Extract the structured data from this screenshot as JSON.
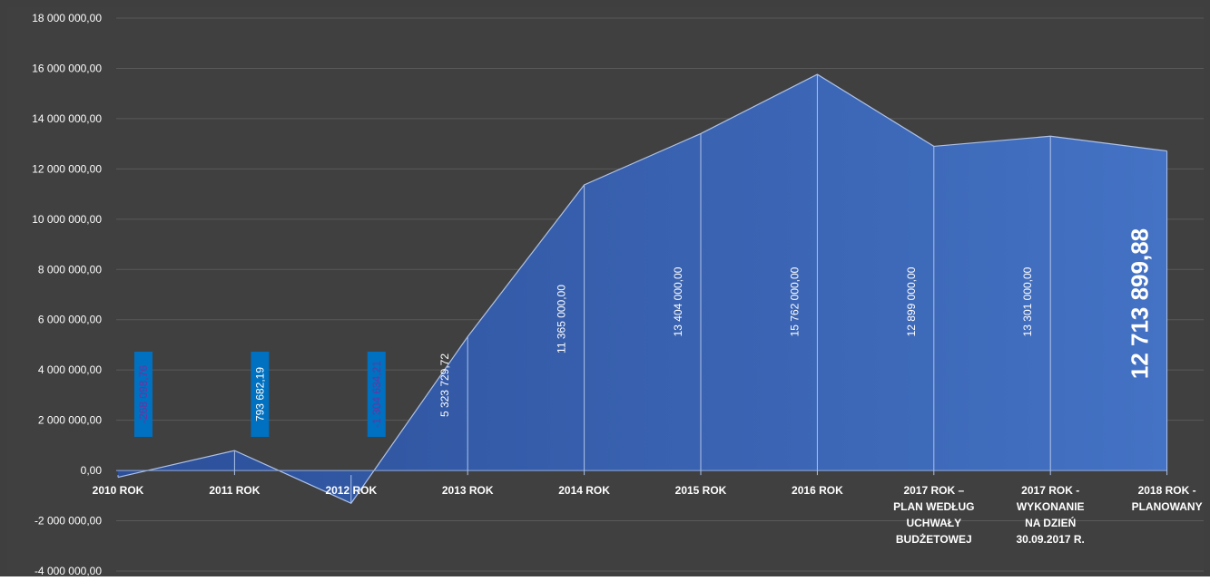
{
  "chart_data": {
    "type": "area",
    "title": "",
    "xlabel": "",
    "ylabel": "",
    "ylim": [
      -4000000,
      18000000
    ],
    "y_tick_values": [
      18000000,
      16000000,
      14000000,
      12000000,
      10000000,
      8000000,
      6000000,
      4000000,
      2000000,
      0,
      -2000000,
      -4000000
    ],
    "y_tick_labels": [
      "18 000 000,00",
      "16 000 000,00",
      "14 000 000,00",
      "12 000 000,00",
      "10 000 000,00",
      "8 000 000,00",
      "6 000 000,00",
      "4 000 000,00",
      "2 000 000,00",
      "0,00",
      "-2 000 000,00",
      "-4 000 000,00"
    ],
    "grid": true,
    "legend": "none",
    "categories": [
      [
        "2010 ROK"
      ],
      [
        "2011 ROK"
      ],
      [
        "2012 ROK"
      ],
      [
        "2013 ROK"
      ],
      [
        "2014 ROK"
      ],
      [
        "2015 ROK"
      ],
      [
        "2016 ROK"
      ],
      [
        "2017 ROK –",
        "PLAN WEDŁUG",
        "UCHWAŁY",
        "BUDŻETOWEJ"
      ],
      [
        "2017 ROK  -",
        "WYKONANIE",
        "NA DZIEŃ",
        "30.09.2017 R."
      ],
      [
        "2018 ROK -",
        "PLANOWANY"
      ]
    ],
    "values": [
      -268098.76,
      793682.19,
      -1304634.21,
      5323729.72,
      11365000.0,
      13404000.0,
      15762000.0,
      12899000.0,
      13301000.0,
      12713899.88
    ],
    "data_labels": [
      "-268 098,76",
      "793 682,19",
      "-1 304 634,21",
      "5 323 729,72",
      "11 365 000,00",
      "13 404 000,00",
      "15 762 000,00",
      "12 899 000,00",
      "13 301 000,00",
      "12 713 899,88"
    ],
    "colors": {
      "background": "#3f3f3f",
      "plot_area": "#404040",
      "area_fill_start": "#2c4f99",
      "area_fill_end": "#4472c4",
      "area_stroke": "#aec2e8",
      "grid": "#595959",
      "axis_text": "#ffffff",
      "label_box": "#0070c0",
      "negative_label_text": "#7030a0"
    }
  }
}
